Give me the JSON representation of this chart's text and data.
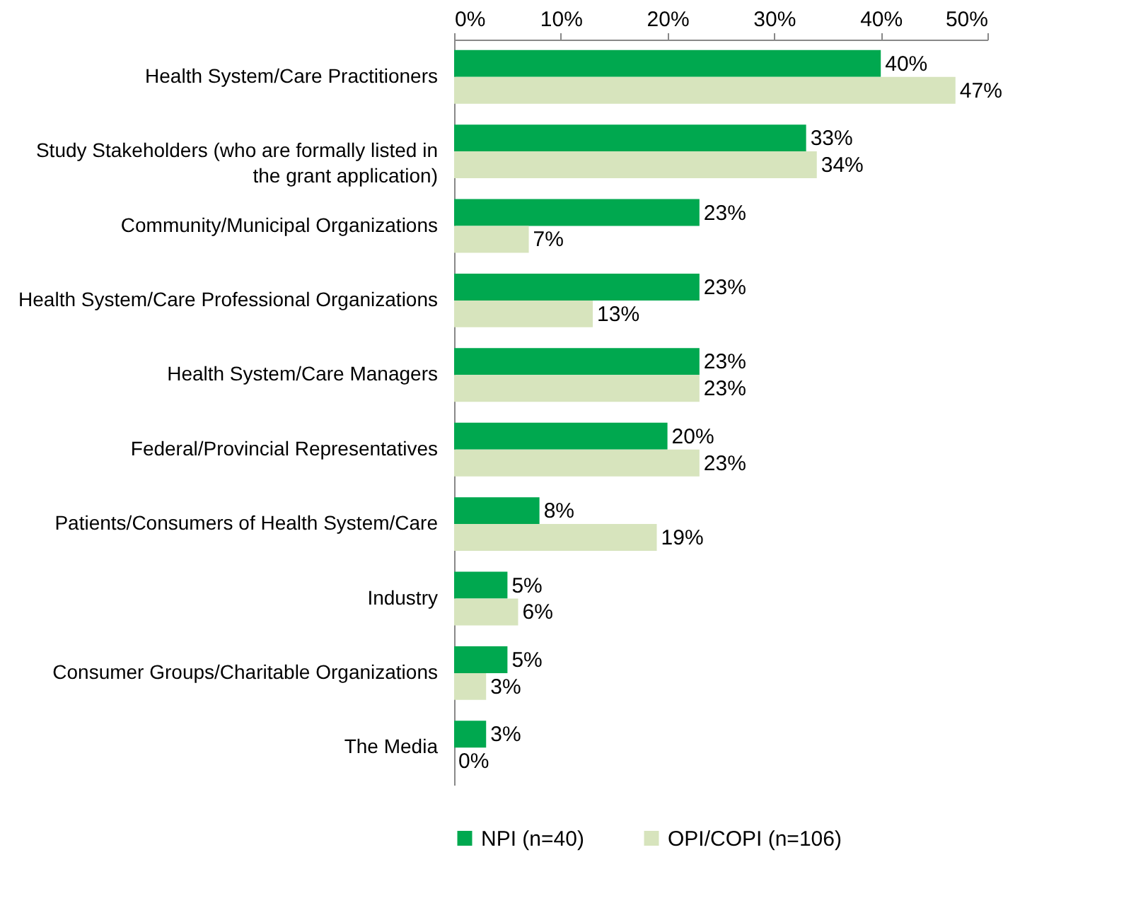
{
  "chart_data": {
    "type": "bar",
    "orientation": "horizontal",
    "categories": [
      "Health System/Care Practitioners",
      "Study Stakeholders (who are formally listed in the grant application)",
      "Community/Municipal Organizations",
      "Health System/Care Professional Organizations",
      "Health System/Care Managers",
      "Federal/Provincial Representatives",
      "Patients/Consumers of Health System/Care",
      "Industry",
      "Consumer Groups/Charitable Organizations",
      "The Media"
    ],
    "series": [
      {
        "name": "NPI (n=40)",
        "color": "#00a84f",
        "values": [
          40,
          33,
          23,
          23,
          23,
          20,
          8,
          5,
          5,
          3
        ],
        "value_labels": [
          "40%",
          "33%",
          "23%",
          "23%",
          "23%",
          "20%",
          "8%",
          "5%",
          "5%",
          "3%"
        ]
      },
      {
        "name": "OPI/COPI (n=106)",
        "color": "#d7e4bd",
        "values": [
          47,
          34,
          7,
          13,
          23,
          23,
          19,
          6,
          3,
          0
        ],
        "value_labels": [
          "47%",
          "34%",
          "7%",
          "13%",
          "23%",
          "23%",
          "19%",
          "6%",
          "3%",
          "0%"
        ]
      }
    ],
    "xlim": [
      0,
      50
    ],
    "xticks": [
      {
        "value": 0,
        "label": "0%"
      },
      {
        "value": 10,
        "label": "10%"
      },
      {
        "value": 20,
        "label": "20%"
      },
      {
        "value": 30,
        "label": "30%"
      },
      {
        "value": 40,
        "label": "40%"
      },
      {
        "value": 50,
        "label": "50%"
      }
    ],
    "grid": false,
    "legend": "bottom"
  }
}
